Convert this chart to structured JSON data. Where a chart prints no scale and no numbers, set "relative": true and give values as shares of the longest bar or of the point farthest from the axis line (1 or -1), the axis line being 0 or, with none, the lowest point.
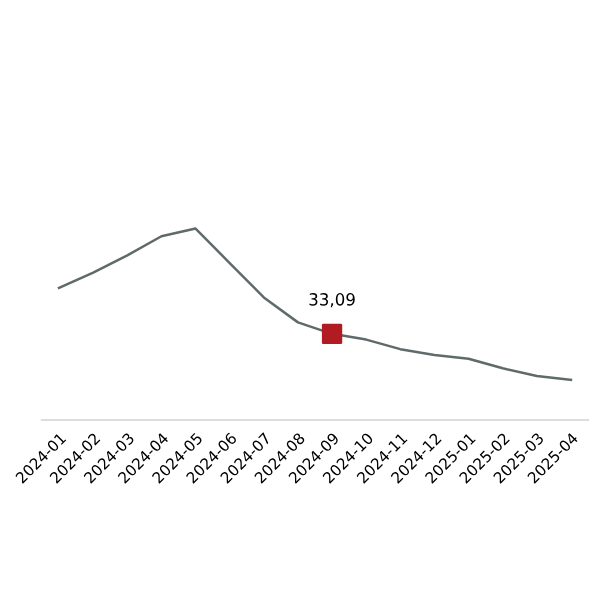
{
  "chart_data": {
    "type": "line",
    "relative": true,
    "categories": [
      "2024-01",
      "2024-02",
      "2024-03",
      "2024-04",
      "2024-05",
      "2024-06",
      "2024-07",
      "2024-08",
      "2024-09",
      "2024-10",
      "2024-11",
      "2024-12",
      "2025-01",
      "2025-02",
      "2025-03",
      "2025-04"
    ],
    "series": [
      {
        "color": "#5f6b6b",
        "marker": "none",
        "values": [
          0.69,
          0.77,
          0.86,
          0.96,
          1,
          0.82,
          0.64,
          0.51,
          0.45,
          0.42,
          0.37,
          0.34,
          0.32,
          0.27,
          0.23,
          0.21
        ]
      },
      {
        "type": "scatter",
        "color": "#b01c22",
        "marker": "square",
        "values": [
          null,
          null,
          null,
          null,
          null,
          null,
          null,
          null,
          0.45,
          null,
          null,
          null,
          null,
          null,
          null,
          null
        ]
      }
    ],
    "annotations": [
      {
        "text": "33,09",
        "x": "2024-09",
        "y": 0.45
      }
    ],
    "grid": false
  }
}
